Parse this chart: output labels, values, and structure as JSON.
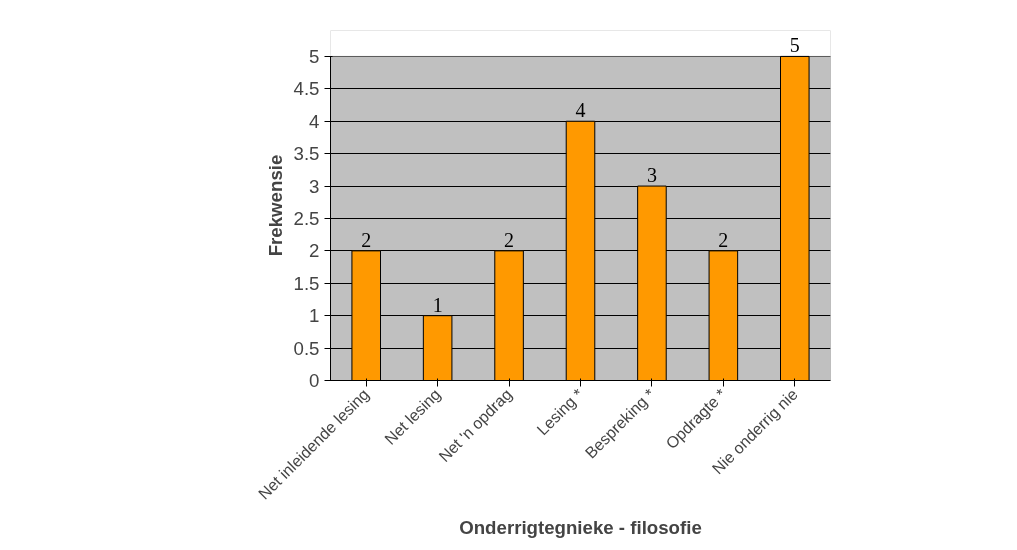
{
  "chart_data": {
    "type": "bar",
    "xlabel": "Onderrigtegnieke - filosofie",
    "ylabel": "Frekwensie",
    "categories": [
      "Net inleidende lesing",
      "Net lesing",
      "Net 'n opdrag",
      "Lesing *",
      "Bespreking *",
      "Opdragte *",
      "Nie onderrig nie"
    ],
    "values": [
      2,
      1,
      2,
      4,
      3,
      2,
      5
    ],
    "color": "#ff9900",
    "data_labels": true,
    "ylim": [
      0,
      5
    ],
    "yticks": [
      0,
      0.5,
      1,
      1.5,
      2,
      2.5,
      3,
      3.5,
      4,
      4.5,
      5
    ],
    "grid": "y"
  }
}
